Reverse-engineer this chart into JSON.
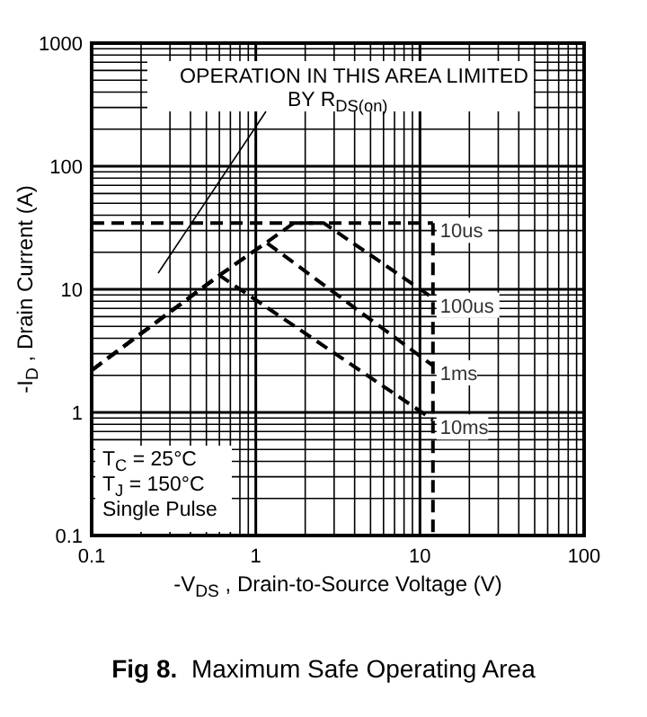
{
  "chart_data": {
    "type": "line",
    "title": "Fig 8.  Maximum Safe Operating Area",
    "xlabel": "-V$_{DS}$ , Drain-to-Source Voltage (V)",
    "ylabel": "-I$_{D}$ , Drain Current (A)",
    "log": "xy",
    "xlim": [
      0.1,
      100
    ],
    "ylim": [
      0.1,
      1000
    ],
    "xticks": [
      0.1,
      1,
      10,
      100
    ],
    "yticks": [
      0.1,
      1,
      10,
      100,
      1000
    ],
    "grid": true,
    "line_style": "dashed",
    "marker": "none",
    "annotations": [
      "OPERATION IN THIS AREA LIMITED BY R$_{DS(on)}$",
      "T$_{C}$ = 25°C",
      "T$_{J}$ = 150°C",
      "Single Pulse"
    ],
    "series": [
      {
        "name": "10us",
        "color": "#000000",
        "x": [
          0.1,
          12
        ],
        "values": [
          34.5,
          34.5
        ]
      },
      {
        "name": "100us",
        "color": "#000000",
        "x": [
          0.1,
          0.6,
          1.16,
          1.7,
          2.6,
          12
        ],
        "values": [
          2.2,
          13,
          24,
          34.5,
          34.5,
          8.5
        ]
      },
      {
        "name": "1ms",
        "color": "#000000",
        "x": [
          0.1,
          0.6,
          1.16,
          12
        ],
        "values": [
          2.2,
          13,
          24,
          2.4
        ]
      },
      {
        "name": "10ms",
        "color": "#000000",
        "x": [
          0.1,
          0.6,
          12
        ],
        "values": [
          2.2,
          13,
          0.87
        ]
      },
      {
        "color": "#000000",
        "x": [
          12,
          12
        ],
        "values": [
          34.5,
          0.1
        ]
      }
    ]
  }
}
